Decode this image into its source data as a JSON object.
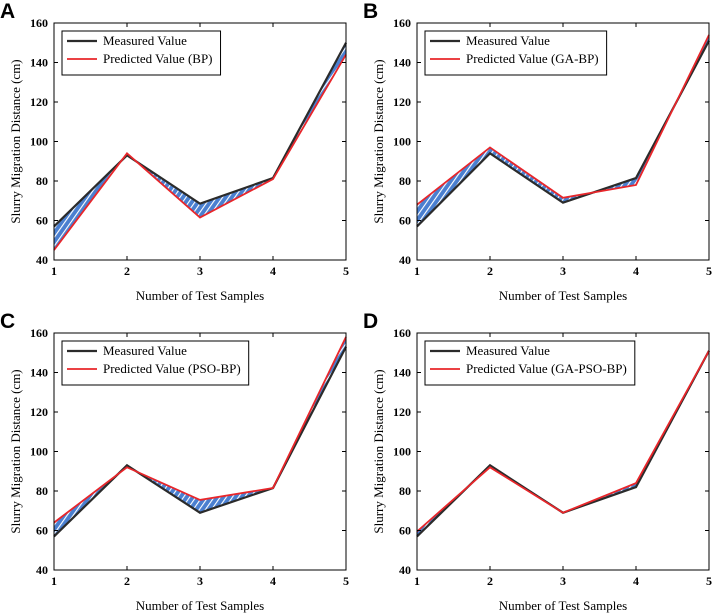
{
  "chart_data": [
    {
      "panel": "A",
      "type": "line",
      "x": [
        1,
        2,
        3,
        4,
        5
      ],
      "series": [
        {
          "name": "Measured Value",
          "color": "#2b2b2b",
          "values": [
            57,
            93,
            68.5,
            81.5,
            150
          ]
        },
        {
          "name": "Predicted Value (BP)",
          "color": "#e8262a",
          "values": [
            45,
            94,
            61.5,
            81,
            144
          ]
        }
      ],
      "xlabel": "Number of Test Samples",
      "ylabel": "Slurry Migration Distance (cm)",
      "xlim": [
        1,
        5
      ],
      "ylim": [
        40,
        160
      ],
      "xticks": [
        "1",
        "2",
        "3",
        "4",
        "5"
      ],
      "yticks": [
        "40",
        "60",
        "80",
        "100",
        "120",
        "140",
        "160"
      ],
      "legend": "top-left",
      "fill": "hatched blue between series"
    },
    {
      "panel": "B",
      "type": "line",
      "x": [
        1,
        2,
        3,
        4,
        5
      ],
      "series": [
        {
          "name": "Measured Value",
          "color": "#2b2b2b",
          "values": [
            57,
            94,
            69,
            81.5,
            151
          ]
        },
        {
          "name": "Predicted Value (GA-BP)",
          "color": "#e8262a",
          "values": [
            68,
            97,
            71.5,
            78,
            154
          ]
        }
      ],
      "xlabel": "Number of Test Samples",
      "ylabel": "Slurry Migration Distance (cm)",
      "xlim": [
        1,
        5
      ],
      "ylim": [
        40,
        160
      ],
      "xticks": [
        "1",
        "2",
        "3",
        "4",
        "5"
      ],
      "yticks": [
        "40",
        "60",
        "80",
        "100",
        "120",
        "140",
        "160"
      ],
      "legend": "top-left",
      "fill": "hatched blue between series"
    },
    {
      "panel": "C",
      "type": "line",
      "x": [
        1,
        2,
        3,
        4,
        5
      ],
      "series": [
        {
          "name": "Measured Value",
          "color": "#2b2b2b",
          "values": [
            57,
            93,
            69,
            81.5,
            153
          ]
        },
        {
          "name": "Predicted Value (PSO-BP)",
          "color": "#e8262a",
          "values": [
            64,
            92,
            75.5,
            81.5,
            158
          ]
        }
      ],
      "xlabel": "Number of Test Samples",
      "ylabel": "Slurry Migration Distance (cm)",
      "xlim": [
        1,
        5
      ],
      "ylim": [
        40,
        160
      ],
      "xticks": [
        "1",
        "2",
        "3",
        "4",
        "5"
      ],
      "yticks": [
        "40",
        "60",
        "80",
        "100",
        "120",
        "140",
        "160"
      ],
      "legend": "top-left",
      "fill": "hatched blue between series"
    },
    {
      "panel": "D",
      "type": "line",
      "x": [
        1,
        2,
        3,
        4,
        5
      ],
      "series": [
        {
          "name": "Measured Value",
          "color": "#2b2b2b",
          "values": [
            57,
            93,
            69,
            82,
            151
          ]
        },
        {
          "name": "Predicted Value (GA-PSO-BP)",
          "color": "#e8262a",
          "values": [
            59.5,
            92,
            69,
            84,
            151
          ]
        }
      ],
      "xlabel": "Number of Test Samples",
      "ylabel": "Slurry Migration Distance (cm)",
      "xlim": [
        1,
        5
      ],
      "ylim": [
        40,
        160
      ],
      "xticks": [
        "1",
        "2",
        "3",
        "4",
        "5"
      ],
      "yticks": [
        "40",
        "60",
        "80",
        "100",
        "120",
        "140",
        "160"
      ],
      "legend": "top-left",
      "fill": "hatched blue between series"
    }
  ],
  "fill_color": "#4a7fd0",
  "hatch_color": "#ffffff"
}
